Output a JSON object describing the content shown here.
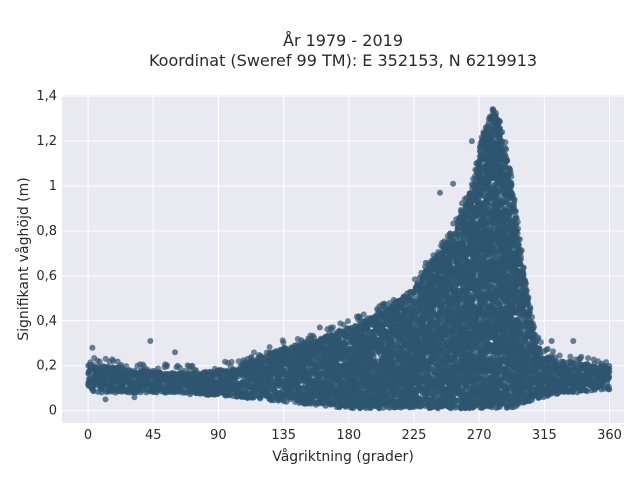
{
  "chart_data": {
    "type": "scatter",
    "title": "År 1979 - 2019",
    "subtitle": "Koordinat (Sweref 99 TM): E 352153, N 6219913",
    "xlabel": "Vågriktning (grader)",
    "ylabel": "Signifikant våghöjd (m)",
    "xlim": [
      -18,
      370
    ],
    "ylim": [
      -0.055,
      1.405
    ],
    "xticks": [
      0,
      45,
      90,
      135,
      180,
      225,
      270,
      315,
      360
    ],
    "xtick_labels": [
      "0",
      "45",
      "90",
      "135",
      "180",
      "225",
      "270",
      "315",
      "360"
    ],
    "yticks": [
      0,
      0.2,
      0.4,
      0.6,
      0.8,
      1.0,
      1.2,
      1.4
    ],
    "ytick_labels": [
      "0",
      "0,2",
      "0,4",
      "0,6",
      "0,8",
      "1",
      "1,2",
      "1,4"
    ],
    "grid": true,
    "marker_color": "#2f5670",
    "plot_background": "#e9e9f2",
    "envelope": {
      "direction": [
        0,
        10,
        20,
        30,
        45,
        60,
        75,
        90,
        105,
        120,
        135,
        150,
        165,
        180,
        195,
        210,
        225,
        235,
        245,
        255,
        262,
        268,
        272,
        276,
        280,
        284,
        288,
        292,
        296,
        300,
        305,
        310,
        315,
        320,
        330,
        340,
        350,
        360
      ],
      "upper_height": [
        0.2,
        0.2,
        0.19,
        0.18,
        0.18,
        0.17,
        0.17,
        0.18,
        0.2,
        0.24,
        0.28,
        0.3,
        0.33,
        0.37,
        0.41,
        0.47,
        0.55,
        0.65,
        0.72,
        0.84,
        0.95,
        1.08,
        1.2,
        1.3,
        1.33,
        1.28,
        1.17,
        1.02,
        0.85,
        0.65,
        0.45,
        0.3,
        0.25,
        0.23,
        0.22,
        0.21,
        0.2,
        0.2
      ],
      "lower_height": [
        0.09,
        0.08,
        0.08,
        0.08,
        0.08,
        0.08,
        0.07,
        0.07,
        0.06,
        0.05,
        0.04,
        0.03,
        0.02,
        0.01,
        0.01,
        0.01,
        0.01,
        0.01,
        0.01,
        0.01,
        0.01,
        0.01,
        0.01,
        0.01,
        0.01,
        0.01,
        0.01,
        0.01,
        0.02,
        0.03,
        0.04,
        0.05,
        0.06,
        0.07,
        0.08,
        0.08,
        0.09,
        0.09
      ]
    },
    "outliers": [
      {
        "x": 3,
        "y": 0.28
      },
      {
        "x": 43,
        "y": 0.31
      },
      {
        "x": 60,
        "y": 0.26
      },
      {
        "x": 110,
        "y": 0.23
      },
      {
        "x": 160,
        "y": 0.37
      },
      {
        "x": 243,
        "y": 0.97
      },
      {
        "x": 252,
        "y": 1.01
      },
      {
        "x": 265,
        "y": 1.2
      },
      {
        "x": 320,
        "y": 0.31
      },
      {
        "x": 335,
        "y": 0.31
      },
      {
        "x": 12,
        "y": 0.05
      },
      {
        "x": 32,
        "y": 0.06
      }
    ]
  }
}
